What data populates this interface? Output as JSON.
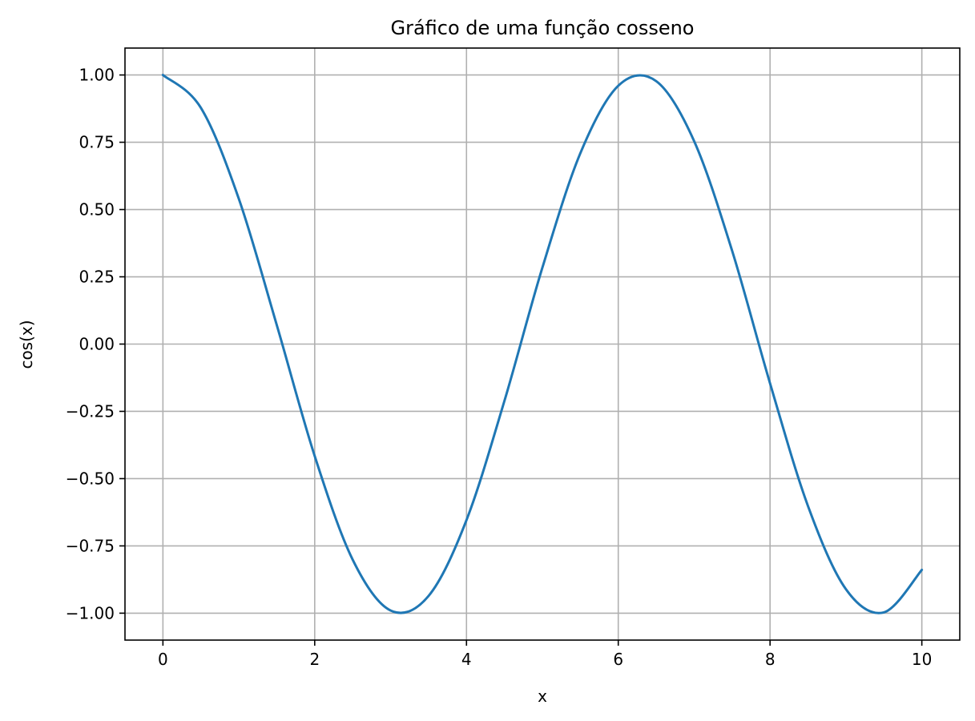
{
  "chart_data": {
    "type": "line",
    "title": "Gráfico de uma função cosseno",
    "xlabel": "x",
    "ylabel": "cos(x)",
    "xlim": [
      -0.5,
      10.5
    ],
    "ylim": [
      -1.1,
      1.1
    ],
    "x_ticks": [
      0,
      2,
      4,
      6,
      8,
      10
    ],
    "x_tick_labels": [
      "0",
      "2",
      "4",
      "6",
      "8",
      "10"
    ],
    "y_ticks": [
      1.0,
      0.75,
      0.5,
      0.25,
      0.0,
      -0.25,
      -0.5,
      -0.75,
      -1.0
    ],
    "y_tick_labels": [
      "1.00",
      "0.75",
      "0.50",
      "0.25",
      "0.00",
      "−0.25",
      "−0.50",
      "−0.75",
      "−1.00"
    ],
    "grid": true,
    "colors": {
      "series": "#1f77b4"
    },
    "series": [
      {
        "x": [
          0,
          0.5,
          1,
          1.5,
          2,
          2.5,
          3,
          3.5,
          4,
          4.5,
          5,
          5.5,
          6,
          6.5,
          7,
          7.5,
          8,
          8.5,
          9,
          9.5,
          10
        ],
        "y": [
          1.0,
          0.878,
          0.54,
          0.071,
          -0.416,
          -0.801,
          -0.99,
          -0.936,
          -0.654,
          -0.211,
          0.284,
          0.709,
          0.96,
          0.977,
          0.754,
          0.347,
          -0.146,
          -0.602,
          -0.911,
          -0.997,
          -0.839
        ]
      }
    ]
  }
}
